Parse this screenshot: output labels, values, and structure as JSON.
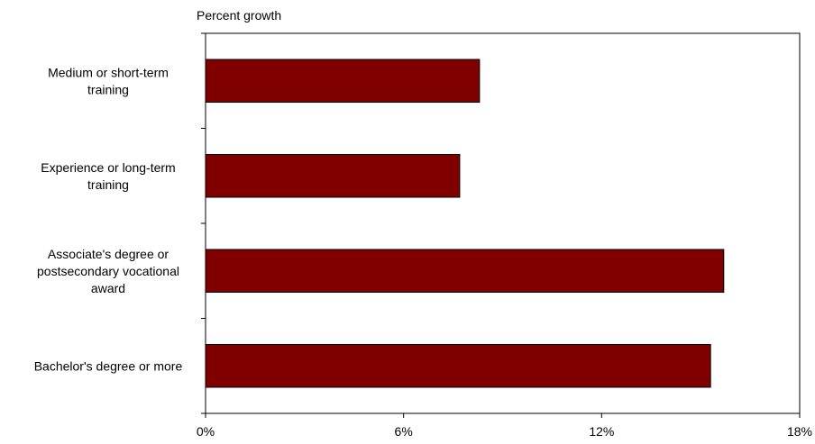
{
  "chart_data": {
    "type": "bar",
    "orientation": "horizontal",
    "title": "",
    "ylabel": "Percent growth",
    "xlabel": "",
    "categories": [
      [
        "Medium or short-term",
        "training"
      ],
      [
        "Experience or long-term",
        "training"
      ],
      [
        "Associate's degree or",
        "postsecondary vocational",
        "award"
      ],
      [
        "Bachelor's degree or more"
      ]
    ],
    "values": [
      8.3,
      7.7,
      15.7,
      15.3
    ],
    "xlim": [
      0,
      18
    ],
    "xticks": [
      0,
      6,
      12,
      18
    ],
    "xtick_labels": [
      "0%",
      "6%",
      "12%",
      "18%"
    ],
    "grid": false,
    "legend": "none",
    "bar_color": "#800000",
    "bar_edge_color": "#000000"
  }
}
